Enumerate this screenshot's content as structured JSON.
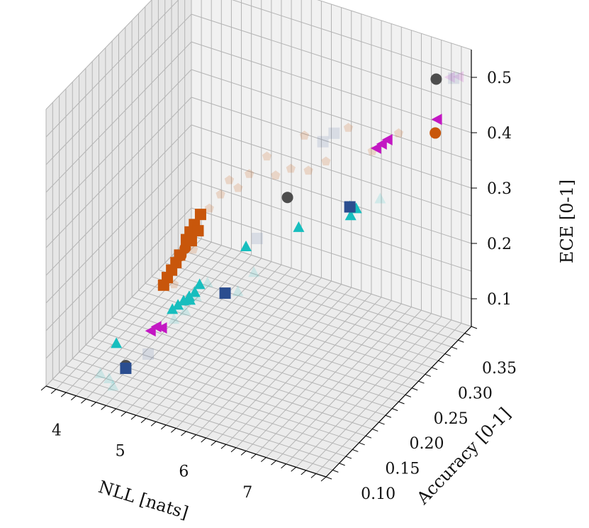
{
  "chart_data": {
    "type": "scatter",
    "projection": "3d",
    "title": "",
    "xlabel": "NLL [nats]",
    "ylabel": "Accuracy [0-1]",
    "zlabel": "ECE [0-1]",
    "x_ticks": [
      "4",
      "5",
      "6",
      "7"
    ],
    "y_ticks": [
      "0.10",
      "0.15",
      "0.20",
      "0.25",
      "0.30",
      "0.35"
    ],
    "z_ticks": [
      "0.1",
      "0.2",
      "0.3",
      "0.4",
      "0.5"
    ],
    "xlim": [
      3.5,
      7.9
    ],
    "ylim": [
      0.08,
      0.38
    ],
    "zlim": [
      0.05,
      0.55
    ],
    "grid": true,
    "colors": {
      "orange": "#c8560b",
      "cyan": "#17bebe",
      "magenta": "#c317c3",
      "gray": "#4d4d4d",
      "navy": "#2a4d8f",
      "pane": "#ececec",
      "grid": "#b4b4b4"
    },
    "series": [
      {
        "name": "orange-circles",
        "marker": "circle",
        "color": "#c8560b",
        "points": [
          [
            7.6,
            0.345,
            0.42
          ],
          [
            4.85,
            0.19,
            0.25
          ],
          [
            4.82,
            0.185,
            0.24
          ]
        ]
      },
      {
        "name": "orange-squares",
        "marker": "square",
        "color": "#c8560b",
        "points": [
          [
            4.9,
            0.215,
            0.29
          ],
          [
            4.88,
            0.205,
            0.28
          ],
          [
            4.85,
            0.2,
            0.27
          ],
          [
            4.83,
            0.195,
            0.26
          ],
          [
            4.8,
            0.185,
            0.24
          ],
          [
            4.78,
            0.18,
            0.23
          ],
          [
            4.75,
            0.175,
            0.22
          ],
          [
            4.72,
            0.17,
            0.21
          ],
          [
            4.7,
            0.165,
            0.2
          ],
          [
            4.9,
            0.21,
            0.265
          ],
          [
            4.87,
            0.2,
            0.255
          ]
        ]
      },
      {
        "name": "orange-faded",
        "marker": "pentagon",
        "color": "#c8560b",
        "alpha": 0.18,
        "points": [
          [
            5.6,
            0.26,
            0.38
          ],
          [
            6.0,
            0.285,
            0.41
          ],
          [
            6.5,
            0.31,
            0.42
          ],
          [
            7.1,
            0.335,
            0.41
          ],
          [
            5.9,
            0.27,
            0.36
          ],
          [
            6.3,
            0.29,
            0.37
          ],
          [
            5.3,
            0.24,
            0.33
          ],
          [
            5.4,
            0.25,
            0.35
          ],
          [
            5.1,
            0.23,
            0.32
          ],
          [
            5.0,
            0.22,
            0.3
          ],
          [
            6.8,
            0.32,
            0.38
          ],
          [
            5.7,
            0.265,
            0.345
          ],
          [
            4.9,
            0.2,
            0.24
          ],
          [
            4.75,
            0.18,
            0.19
          ],
          [
            5.2,
            0.235,
            0.345
          ],
          [
            6.1,
            0.28,
            0.355
          ]
        ]
      },
      {
        "name": "cyan-triangles",
        "marker": "triangle-up",
        "color": "#17bebe",
        "points": [
          [
            4.3,
            0.12,
            0.12
          ],
          [
            5.0,
            0.18,
            0.17
          ],
          [
            5.0,
            0.2,
            0.18
          ],
          [
            5.0,
            0.19,
            0.175
          ],
          [
            4.95,
            0.185,
            0.17
          ],
          [
            4.9,
            0.18,
            0.165
          ],
          [
            4.85,
            0.175,
            0.16
          ],
          [
            4.8,
            0.17,
            0.155
          ],
          [
            5.5,
            0.23,
            0.24
          ],
          [
            6.1,
            0.26,
            0.27
          ],
          [
            6.6,
            0.3,
            0.29
          ],
          [
            6.7,
            0.3,
            0.29
          ],
          [
            6.65,
            0.295,
            0.28
          ]
        ]
      },
      {
        "name": "cyan-faded",
        "marker": "triangle-up",
        "color": "#17bebe",
        "alpha": 0.15,
        "points": [
          [
            4.2,
            0.1,
            0.08
          ],
          [
            4.3,
            0.105,
            0.07
          ],
          [
            4.4,
            0.1,
            0.065
          ],
          [
            5.2,
            0.19,
            0.2
          ],
          [
            5.1,
            0.18,
            0.18
          ],
          [
            5.0,
            0.17,
            0.16
          ],
          [
            5.6,
            0.2,
            0.19
          ],
          [
            7.0,
            0.31,
            0.31
          ],
          [
            5.7,
            0.22,
            0.21
          ],
          [
            4.9,
            0.16,
            0.15
          ]
        ]
      },
      {
        "name": "magenta-left-triangles",
        "marker": "triangle-left",
        "color": "#c317c3",
        "points": [
          [
            7.6,
            0.35,
            0.44
          ],
          [
            6.95,
            0.31,
            0.4
          ],
          [
            7.0,
            0.315,
            0.405
          ],
          [
            7.05,
            0.32,
            0.41
          ],
          [
            4.7,
            0.14,
            0.14
          ],
          [
            4.75,
            0.145,
            0.145
          ],
          [
            4.8,
            0.15,
            0.14
          ]
        ]
      },
      {
        "name": "magenta-faded",
        "marker": "triangle-left",
        "color": "#c317c3",
        "alpha": 0.15,
        "points": [
          [
            7.75,
            0.375,
            0.5
          ],
          [
            7.65,
            0.37,
            0.5
          ]
        ]
      },
      {
        "name": "gray-circles",
        "marker": "circle",
        "color": "#4d4d4d",
        "points": [
          [
            7.5,
            0.36,
            0.5
          ],
          [
            6.0,
            0.25,
            0.33
          ],
          [
            4.6,
            0.1,
            0.11
          ]
        ]
      },
      {
        "name": "navy-squares",
        "marker": "square",
        "color": "#2a4d8f",
        "points": [
          [
            5.4,
            0.2,
            0.18
          ],
          [
            4.6,
            0.1,
            0.105
          ],
          [
            6.6,
            0.3,
            0.29
          ]
        ]
      },
      {
        "name": "navy-faded",
        "marker": "square",
        "color": "#2a4d8f",
        "alpha": 0.12,
        "points": [
          [
            6.1,
            0.31,
            0.38
          ],
          [
            6.2,
            0.32,
            0.39
          ],
          [
            5.6,
            0.24,
            0.25
          ],
          [
            4.8,
            0.12,
            0.12
          ],
          [
            7.7,
            0.37,
            0.5
          ]
        ]
      }
    ]
  }
}
